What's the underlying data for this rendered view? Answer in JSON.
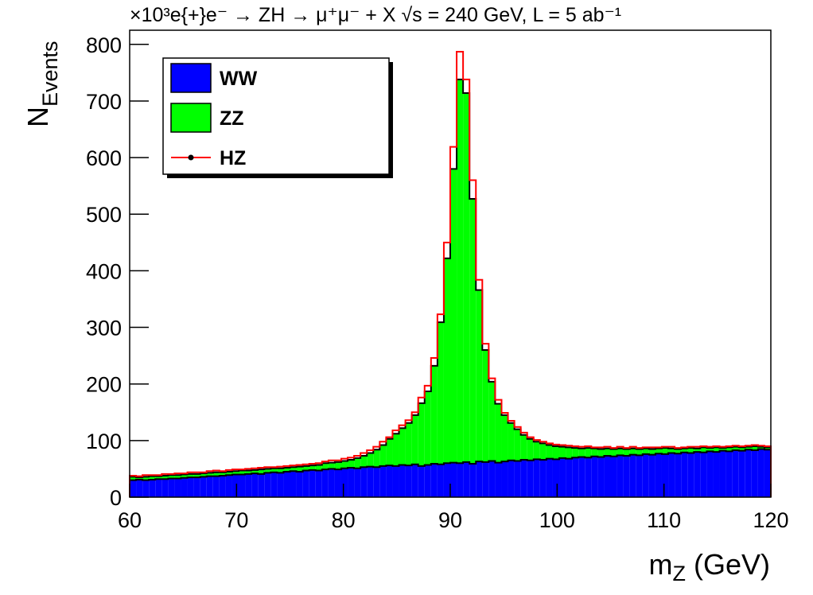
{
  "chart_data": {
    "type": "stacked-histogram",
    "title": "×10³e{+}e⁻ → ZH → μ⁺μ⁻ + X   √s = 240 GeV, L = 5 ab⁻¹",
    "x_label": {
      "main": "m",
      "sub": "Z",
      "rest": " (GeV)"
    },
    "y_label": {
      "main": "N",
      "sub": "Events"
    },
    "xlim": [
      60,
      120
    ],
    "ylim": [
      0,
      825
    ],
    "xticks": [
      60,
      70,
      80,
      90,
      100,
      110,
      120
    ],
    "yticks": [
      0,
      100,
      200,
      300,
      400,
      500,
      600,
      700,
      800
    ],
    "bins": [
      60,
      60.6,
      61.2,
      61.8,
      62.4,
      63,
      63.6,
      64.2,
      64.8,
      65.4,
      66,
      66.6,
      67.2,
      67.8,
      68.4,
      69,
      69.6,
      70.2,
      70.8,
      71.4,
      72,
      72.6,
      73.2,
      73.8,
      74.4,
      75,
      75.6,
      76.2,
      76.8,
      77.4,
      78,
      78.6,
      79.2,
      79.8,
      80.4,
      81,
      81.6,
      82.2,
      82.8,
      83.4,
      84,
      84.6,
      85.2,
      85.8,
      86.4,
      87,
      87.6,
      88.2,
      88.8,
      89.4,
      90,
      90.6,
      91.2,
      91.8,
      92.4,
      93,
      93.6,
      94.2,
      94.8,
      95.4,
      96,
      96.6,
      97.2,
      97.8,
      98.4,
      99,
      99.6,
      100.2,
      100.8,
      101.4,
      102,
      102.6,
      103.2,
      103.8,
      104.4,
      105,
      105.6,
      106.2,
      106.8,
      107.4,
      108,
      108.6,
      109.2,
      109.8,
      110.4,
      111,
      111.6,
      112.2,
      112.8,
      113.4,
      114,
      114.6,
      115.2,
      115.8,
      116.4,
      117,
      117.6,
      118.2,
      118.8,
      119.4,
      120
    ],
    "series": [
      {
        "name": "WW",
        "color": "#0000ff",
        "values": [
          30,
          31,
          30,
          31,
          32,
          32,
          33,
          33,
          34,
          35,
          35,
          36,
          37,
          37,
          38,
          39,
          40,
          40,
          41,
          42,
          41,
          43,
          44,
          43,
          45,
          46,
          45,
          47,
          48,
          47,
          49,
          50,
          49,
          51,
          52,
          51,
          53,
          54,
          53,
          55,
          56,
          55,
          57,
          56,
          58,
          55,
          57,
          59,
          58,
          60,
          61,
          60,
          62,
          59,
          63,
          62,
          64,
          61,
          63,
          65,
          64,
          66,
          65,
          67,
          66,
          68,
          67,
          69,
          68,
          70,
          71,
          70,
          72,
          71,
          73,
          72,
          74,
          73,
          75,
          74,
          76,
          75,
          77,
          76,
          78,
          77,
          79,
          78,
          80,
          79,
          81,
          80,
          82,
          81,
          83,
          82,
          84,
          83,
          85,
          84
        ]
      },
      {
        "name": "ZZ",
        "color": "#00ff00",
        "values": [
          6,
          4,
          6,
          6,
          5,
          6,
          6,
          6,
          6,
          6,
          6,
          6,
          6,
          7,
          6,
          6,
          6,
          7,
          6,
          6,
          8,
          7,
          7,
          8,
          7,
          7,
          9,
          8,
          8,
          10,
          11,
          11,
          13,
          13,
          14,
          18,
          20,
          24,
          31,
          37,
          47,
          57,
          65,
          75,
          87,
          111,
          130,
          173,
          251,
          362,
          519,
          678,
          652,
          468,
          303,
          198,
          140,
          104,
          82,
          66,
          56,
          44,
          38,
          31,
          29,
          24,
          23,
          20,
          20,
          17,
          15,
          17,
          14,
          14,
          13,
          13,
          12,
          12,
          11,
          11,
          10,
          10,
          9,
          11,
          8,
          8,
          7,
          9,
          6,
          9,
          6,
          8,
          5,
          7,
          6,
          6,
          5,
          7,
          4,
          4
        ]
      },
      {
        "name": "HZ",
        "color": "#ff0000",
        "values": [
          2,
          2,
          3,
          2,
          2,
          3,
          2,
          3,
          2,
          3,
          3,
          2,
          3,
          3,
          2,
          3,
          3,
          2,
          3,
          3,
          3,
          3,
          2,
          3,
          3,
          3,
          3,
          3,
          3,
          3,
          3,
          4,
          3,
          4,
          4,
          4,
          5,
          5,
          5,
          6,
          3,
          6,
          5,
          5,
          5,
          10,
          10,
          14,
          14,
          28,
          39,
          49,
          24,
          33,
          18,
          11,
          6,
          7,
          4,
          4,
          4,
          4,
          3,
          3,
          3,
          3,
          3,
          3,
          3,
          3,
          3,
          3,
          2,
          3,
          3,
          2,
          3,
          2,
          3,
          2,
          2,
          3,
          2,
          2,
          3,
          2,
          2,
          2,
          3,
          2,
          2,
          2,
          2,
          2,
          2,
          2,
          2,
          2,
          2,
          2
        ]
      }
    ]
  }
}
